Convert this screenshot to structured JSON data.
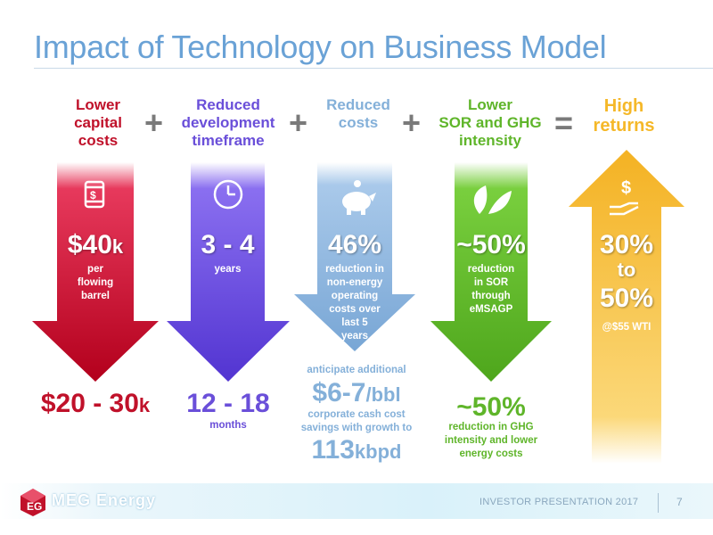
{
  "title": "Impact of Technology on Business Model",
  "columns": [
    {
      "heading": "Lower\ncapital\ncosts",
      "color": "#c0112a",
      "icon": "oil-barrel-dollar-icon",
      "big": "$40",
      "big_suffix": "k",
      "sub": "per\nflowing\nbarrel",
      "bottom_big": "$20 - 30",
      "bottom_suffix": "k",
      "bottom_sub": ""
    },
    {
      "heading": "Reduced\ndevelopment\ntimeframe",
      "color": "#6a4fd9",
      "icon": "clock-icon",
      "big": "3 - 4",
      "sub": "years",
      "bottom_big": "12 - 18",
      "bottom_sub": "months"
    },
    {
      "heading": "Reduced\ncosts",
      "color": "#84b0d9",
      "icon": "piggy-bank-icon",
      "big": "46%",
      "sub": "reduction in\nnon-energy\noperating\ncosts over\nlast 5\nyears",
      "bottom_pre": "anticipate additional",
      "bottom_big": "$6-7",
      "bottom_suffix": "/bbl",
      "bottom_sub": "corporate cash cost\nsavings with growth to",
      "bottom_big2": "113",
      "bottom_suffix2": "kbpd"
    },
    {
      "heading": "Lower\nSOR and GHG\nintensity",
      "color": "#5fb52a",
      "icon": "leaves-icon",
      "big": "~50%",
      "sub": "reduction\nin SOR\nthrough\neMSAGP",
      "bottom_big": "~50%",
      "bottom_sub": "reduction in GHG\nintensity and lower\nenergy costs"
    },
    {
      "heading": "High\nreturns",
      "color": "#f5b829",
      "icon": "hand-dollar-icon",
      "big": "30%",
      "big2": "to",
      "big3": "50%",
      "sub": "@$55 WTI"
    }
  ],
  "operators": [
    "+",
    "+",
    "+",
    "="
  ],
  "footer": {
    "logo_text": "MEG Energy",
    "presentation": "INVESTOR PRESENTATION 2017",
    "page": "7"
  }
}
